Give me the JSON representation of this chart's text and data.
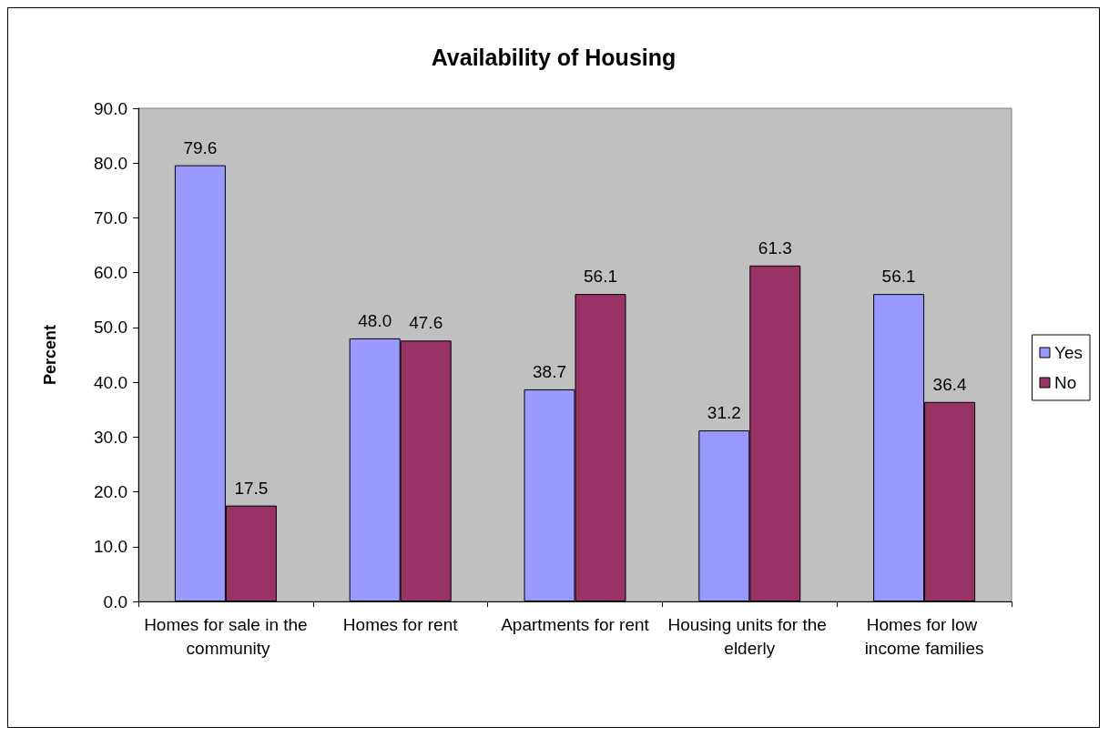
{
  "chart_data": {
    "type": "bar",
    "title": "Availability of Housing",
    "ylabel": "Percent",
    "categories": [
      "Homes for sale in the community",
      "Homes for rent",
      "Apartments for rent",
      "Housing units for the elderly",
      "Homes for low income families"
    ],
    "series": [
      {
        "name": "Yes",
        "color": "#9999ff",
        "values": [
          79.6,
          48.0,
          38.7,
          31.2,
          56.1
        ],
        "value_labels": [
          "79.6",
          "48.0",
          "38.7",
          "31.2",
          "56.1"
        ]
      },
      {
        "name": "No",
        "color": "#993366",
        "values": [
          17.5,
          47.6,
          56.1,
          61.3,
          36.4
        ],
        "value_labels": [
          "17.5",
          "47.6",
          "56.1",
          "61.3",
          "36.4"
        ]
      }
    ],
    "ylim": [
      0,
      90
    ],
    "yticks": [
      {
        "value": 0,
        "label": "0.0"
      },
      {
        "value": 10,
        "label": "10.0"
      },
      {
        "value": 20,
        "label": "20.0"
      },
      {
        "value": 30,
        "label": "30.0"
      },
      {
        "value": 40,
        "label": "40.0"
      },
      {
        "value": 50,
        "label": "50.0"
      },
      {
        "value": 60,
        "label": "60.0"
      },
      {
        "value": 70,
        "label": "70.0"
      },
      {
        "value": 80,
        "label": "80.0"
      },
      {
        "value": 90,
        "label": "90.0"
      }
    ],
    "grid": false,
    "legend": "right"
  }
}
